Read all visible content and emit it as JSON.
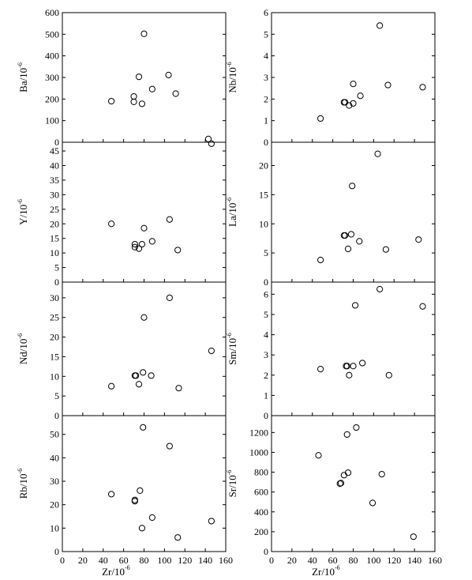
{
  "x_axis_label": "Zr/10",
  "x_axis_label_sup": "-6",
  "chart_data": [
    {
      "type": "scatter",
      "ylabel": "Ba/10",
      "ylabel_sup": "-6",
      "xlim": [
        0,
        160
      ],
      "ylim": [
        0,
        600
      ],
      "xticks": [],
      "yticks": [
        0,
        100,
        200,
        300,
        400,
        500,
        600
      ],
      "points": [
        [
          48,
          190
        ],
        [
          70,
          212
        ],
        [
          70,
          187
        ],
        [
          75,
          303
        ],
        [
          78,
          178
        ],
        [
          80,
          502
        ],
        [
          88,
          246
        ],
        [
          104,
          311
        ],
        [
          111,
          225
        ],
        [
          143,
          15
        ]
      ]
    },
    {
      "type": "scatter",
      "ylabel": "Nb/10",
      "ylabel_sup": "-6",
      "xlim": [
        0,
        160
      ],
      "ylim": [
        0,
        6
      ],
      "xticks": [],
      "yticks": [
        0,
        1,
        2,
        3,
        4,
        5,
        6
      ],
      "points": [
        [
          48,
          1.1
        ],
        [
          71,
          1.85
        ],
        [
          72,
          1.85
        ],
        [
          76,
          1.7
        ],
        [
          80,
          1.8
        ],
        [
          80,
          2.7
        ],
        [
          87,
          2.15
        ],
        [
          106,
          5.4
        ],
        [
          114,
          2.65
        ],
        [
          148,
          2.55
        ]
      ]
    },
    {
      "type": "scatter",
      "ylabel": "Y/10",
      "ylabel_sup": "-6",
      "xlim": [
        0,
        160
      ],
      "ylim": [
        0,
        48
      ],
      "xticks": [],
      "yticks": [
        0,
        5,
        10,
        15,
        20,
        25,
        30,
        35,
        40,
        45
      ],
      "points": [
        [
          48,
          20
        ],
        [
          71,
          13
        ],
        [
          71,
          12
        ],
        [
          75,
          11.5
        ],
        [
          78,
          13
        ],
        [
          80,
          18.5
        ],
        [
          88,
          14
        ],
        [
          105,
          21.5
        ],
        [
          113,
          11
        ],
        [
          146,
          47.5
        ]
      ]
    },
    {
      "type": "scatter",
      "ylabel": "La/10",
      "ylabel_sup": "-6",
      "xlim": [
        0,
        160
      ],
      "ylim": [
        0,
        24
      ],
      "xticks": [],
      "yticks": [
        0,
        5,
        10,
        15,
        20
      ],
      "points": [
        [
          48,
          3.8
        ],
        [
          71,
          8
        ],
        [
          72,
          8
        ],
        [
          75,
          5.7
        ],
        [
          78,
          8.2
        ],
        [
          79,
          16.5
        ],
        [
          86,
          7
        ],
        [
          104,
          22
        ],
        [
          112,
          5.6
        ],
        [
          144,
          7.3
        ]
      ]
    },
    {
      "type": "scatter",
      "ylabel": "Nd/10",
      "ylabel_sup": "-6",
      "xlim": [
        0,
        160
      ],
      "ylim": [
        0,
        34
      ],
      "xticks": [],
      "yticks": [
        0,
        5,
        10,
        15,
        20,
        25,
        30
      ],
      "points": [
        [
          48,
          7.5
        ],
        [
          71,
          10.2
        ],
        [
          72,
          10.2
        ],
        [
          75,
          8
        ],
        [
          79,
          11
        ],
        [
          80,
          25
        ],
        [
          87,
          10.2
        ],
        [
          105,
          30
        ],
        [
          114,
          7
        ],
        [
          146,
          16.5
        ]
      ]
    },
    {
      "type": "scatter",
      "ylabel": "Sm/10",
      "ylabel_sup": "-6",
      "xlim": [
        0,
        160
      ],
      "ylim": [
        0,
        6.6
      ],
      "xticks": [],
      "yticks": [
        0,
        1,
        2,
        3,
        4,
        5,
        6
      ],
      "points": [
        [
          48,
          2.3
        ],
        [
          73,
          2.45
        ],
        [
          74,
          2.45
        ],
        [
          76,
          2
        ],
        [
          80,
          2.45
        ],
        [
          82,
          5.45
        ],
        [
          89,
          2.6
        ],
        [
          106,
          6.25
        ],
        [
          115,
          2
        ],
        [
          148,
          5.4
        ]
      ]
    },
    {
      "type": "scatter",
      "ylabel": "Rb/10",
      "ylabel_sup": "-6",
      "xlim": [
        0,
        160
      ],
      "ylim": [
        0,
        58
      ],
      "xticks": [
        0,
        20,
        40,
        60,
        80,
        100,
        120,
        140,
        160
      ],
      "yticks": [
        0,
        10,
        20,
        30,
        40,
        50
      ],
      "points": [
        [
          48,
          24.5
        ],
        [
          71,
          22
        ],
        [
          71,
          21.5
        ],
        [
          76,
          26
        ],
        [
          78,
          10
        ],
        [
          79,
          53
        ],
        [
          88,
          14.5
        ],
        [
          105,
          45
        ],
        [
          113,
          6
        ],
        [
          146,
          13
        ]
      ]
    },
    {
      "type": "scatter",
      "ylabel": "Sr/10",
      "ylabel_sup": "-6",
      "xlim": [
        0,
        160
      ],
      "ylim": [
        0,
        1370
      ],
      "xticks": [
        0,
        20,
        40,
        60,
        80,
        100,
        120,
        140,
        160
      ],
      "yticks": [
        0,
        200,
        400,
        600,
        800,
        1000,
        1200
      ],
      "points": [
        [
          46,
          970
        ],
        [
          67,
          685
        ],
        [
          68,
          690
        ],
        [
          71,
          770
        ],
        [
          74,
          1180
        ],
        [
          75,
          795
        ],
        [
          83,
          1250
        ],
        [
          99,
          490
        ],
        [
          108,
          780
        ],
        [
          139,
          150
        ]
      ]
    }
  ]
}
